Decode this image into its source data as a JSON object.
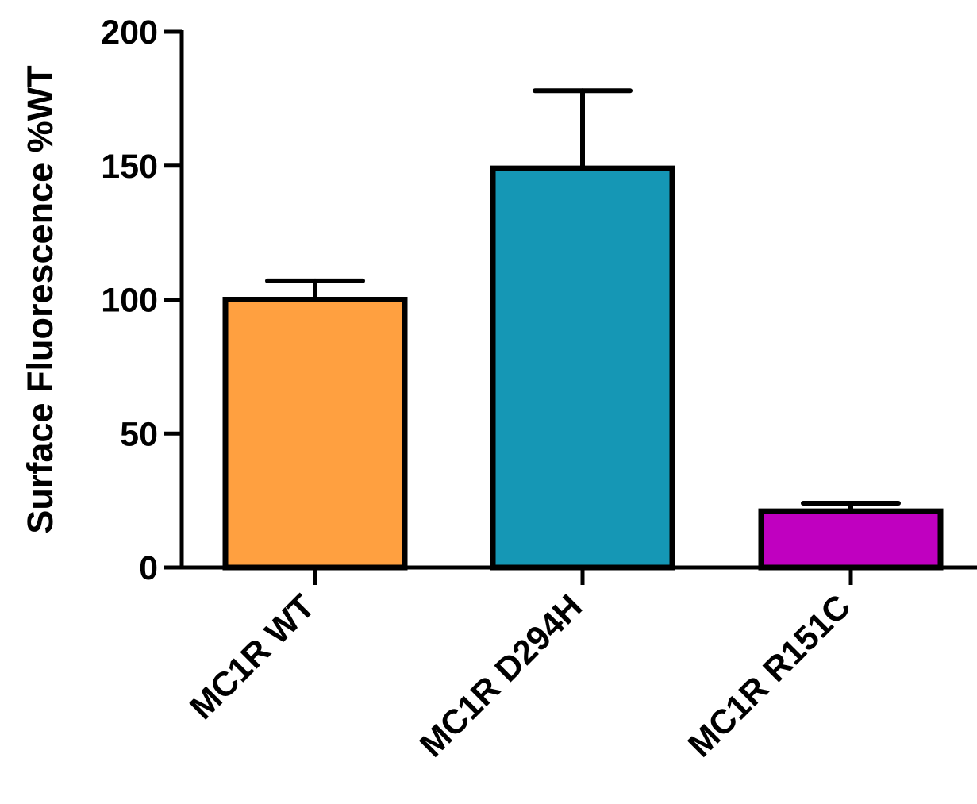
{
  "chart_data": {
    "type": "bar",
    "title": "",
    "xlabel": "",
    "ylabel": "Surface Fluorescence %WT",
    "ylim": [
      0,
      200
    ],
    "yticks": [
      0,
      50,
      100,
      150,
      200
    ],
    "ytick_labels": [
      "0",
      "50",
      "100",
      "150",
      "200"
    ],
    "grid": false,
    "legend": "none",
    "categories": [
      "MC1R WT",
      "MC1R D294H",
      "MC1R R151C"
    ],
    "values": [
      100,
      149,
      21
    ],
    "error_upper": [
      107,
      178,
      24
    ],
    "colors": [
      "#FFA040",
      "#1597B5",
      "#C000C0"
    ]
  }
}
